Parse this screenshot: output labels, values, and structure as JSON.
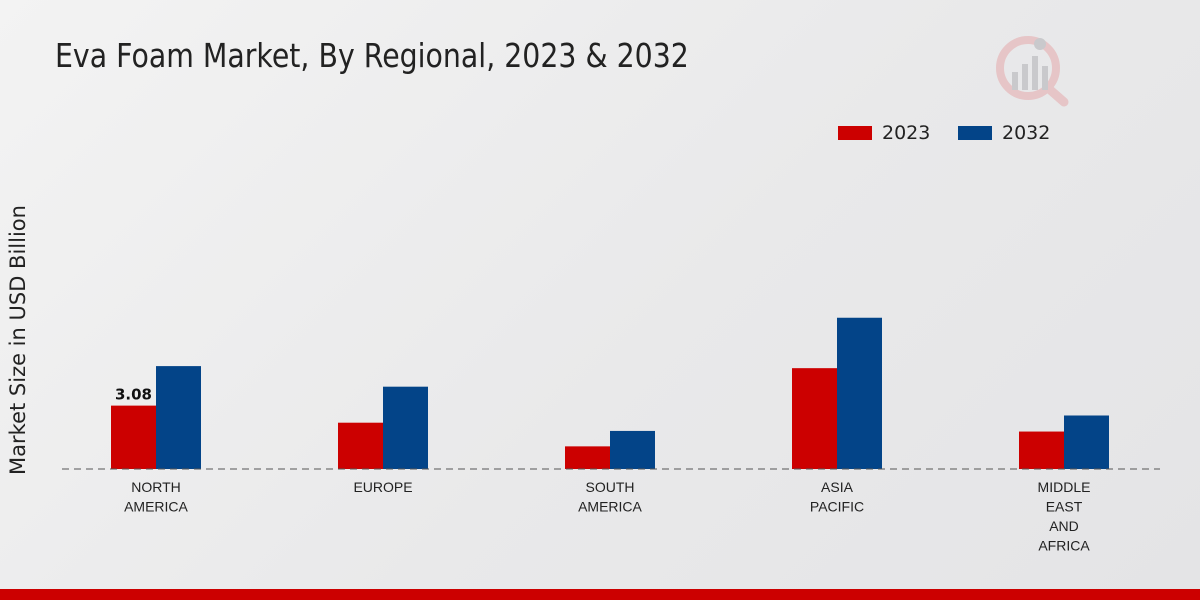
{
  "chart_data": {
    "type": "bar",
    "title": "Eva Foam Market, By Regional, 2023 & 2032",
    "xlabel": "",
    "ylabel": "Market Size in USD Billion",
    "categories": [
      [
        "NORTH",
        "AMERICA"
      ],
      [
        "EUROPE"
      ],
      [
        "SOUTH",
        "AMERICA"
      ],
      [
        "ASIA",
        "PACIFIC"
      ],
      [
        "MIDDLE",
        "EAST",
        "AND",
        "AFRICA"
      ]
    ],
    "series": [
      {
        "name": "2023",
        "color": "#cc0000",
        "values": [
          3.08,
          2.25,
          1.1,
          4.9,
          1.82
        ]
      },
      {
        "name": "2032",
        "color": "#034488",
        "values": [
          5.0,
          4.0,
          1.85,
          7.35,
          2.6
        ]
      }
    ],
    "data_labels": [
      {
        "series": 0,
        "index": 0,
        "text": "3.08"
      }
    ],
    "ylim": [
      0,
      19
    ],
    "grid": false,
    "legend_position": "top-right"
  }
}
